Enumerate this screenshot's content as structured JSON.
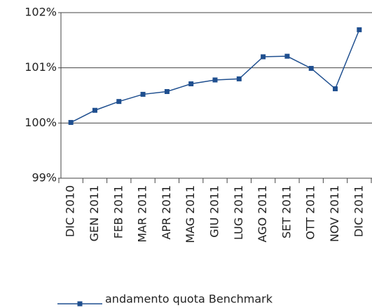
{
  "chart_data": {
    "type": "line",
    "categories": [
      "DIC 2010",
      "GEN 2011",
      "FEB 2011",
      "MAR 2011",
      "APR 2011",
      "MAG 2011",
      "GIU 2011",
      "LUG 2011",
      "AGO 2011",
      "SET 2011",
      "OTT 2011",
      "NOV 2011",
      "DIC 2011"
    ],
    "series": [
      {
        "name": "andamento quota Benchmark",
        "color": "#1f4f8f",
        "values": [
          100.01,
          100.23,
          100.39,
          100.52,
          100.57,
          100.71,
          100.78,
          100.8,
          101.2,
          101.21,
          100.99,
          100.62,
          101.69
        ]
      }
    ],
    "ylim": [
      99,
      102
    ],
    "yticks": [
      {
        "value": 99,
        "label": "99%"
      },
      {
        "value": 100,
        "label": "100%"
      },
      {
        "value": 101,
        "label": "101%"
      },
      {
        "value": 102,
        "label": "102%"
      }
    ],
    "grid": true
  }
}
